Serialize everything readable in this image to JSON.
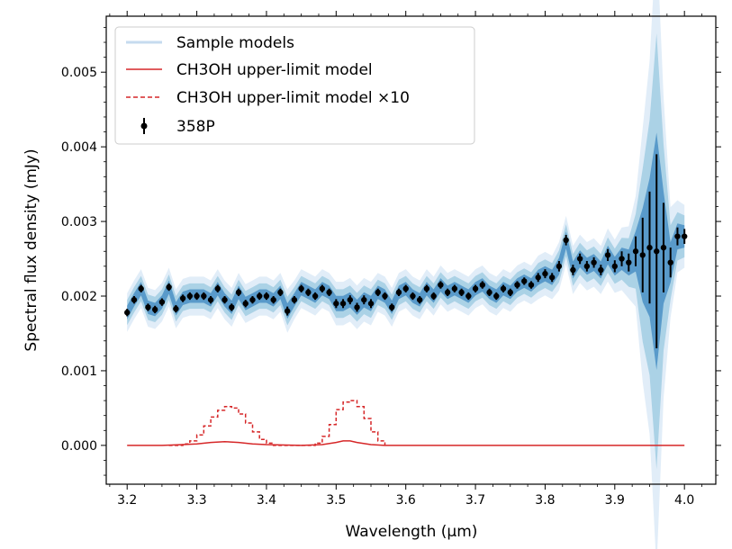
{
  "chart_data": {
    "type": "line",
    "xlabel": "Wavelength (μm)",
    "ylabel": "Spectral flux density (mJy)",
    "xlim": [
      3.17,
      4.045
    ],
    "ylim": [
      -0.00052,
      0.00575
    ],
    "x_ticks": [
      3.2,
      3.3,
      3.4,
      3.5,
      3.6,
      3.7,
      3.8,
      3.9,
      4.0
    ],
    "x_tick_labels": [
      "3.2",
      "3.3",
      "3.4",
      "3.5",
      "3.6",
      "3.7",
      "3.8",
      "3.9",
      "4.0"
    ],
    "y_ticks": [
      0.0,
      0.001,
      0.002,
      0.003,
      0.004,
      0.005
    ],
    "y_tick_labels": [
      "0.000",
      "0.001",
      "0.002",
      "0.003",
      "0.004",
      "0.005"
    ],
    "legend_position": "top-left",
    "legend": [
      {
        "label": "Sample models",
        "style": "band",
        "color": "#c6dbef"
      },
      {
        "label": "CH3OH upper-limit model",
        "style": "solid-line",
        "color": "#d62728"
      },
      {
        "label": "CH3OH upper-limit model ×10",
        "style": "dashed-line",
        "color": "#d62728"
      },
      {
        "label": "358P",
        "style": "errorbar-point",
        "color": "#000000"
      }
    ],
    "series": [
      {
        "name": "358P",
        "type": "errorbar",
        "color": "#000000",
        "x": [
          3.2,
          3.21,
          3.22,
          3.23,
          3.24,
          3.25,
          3.26,
          3.27,
          3.28,
          3.29,
          3.3,
          3.31,
          3.32,
          3.33,
          3.34,
          3.35,
          3.36,
          3.37,
          3.38,
          3.39,
          3.4,
          3.41,
          3.42,
          3.43,
          3.44,
          3.45,
          3.46,
          3.47,
          3.48,
          3.49,
          3.5,
          3.51,
          3.52,
          3.53,
          3.54,
          3.55,
          3.56,
          3.57,
          3.58,
          3.59,
          3.6,
          3.61,
          3.62,
          3.63,
          3.64,
          3.65,
          3.66,
          3.67,
          3.68,
          3.69,
          3.7,
          3.71,
          3.72,
          3.73,
          3.74,
          3.75,
          3.76,
          3.77,
          3.78,
          3.79,
          3.8,
          3.81,
          3.82,
          3.83,
          3.84,
          3.85,
          3.86,
          3.87,
          3.88,
          3.89,
          3.9,
          3.91,
          3.92,
          3.93,
          3.94,
          3.95,
          3.96,
          3.97,
          3.98,
          3.99,
          4.0
        ],
        "y": [
          0.00178,
          0.00195,
          0.0021,
          0.00185,
          0.00182,
          0.00192,
          0.00212,
          0.00183,
          0.00197,
          0.002,
          0.002,
          0.002,
          0.00195,
          0.0021,
          0.00195,
          0.00185,
          0.00205,
          0.0019,
          0.00195,
          0.002,
          0.002,
          0.00195,
          0.00205,
          0.0018,
          0.00195,
          0.0021,
          0.00205,
          0.002,
          0.0021,
          0.00205,
          0.0019,
          0.0019,
          0.00195,
          0.00185,
          0.00195,
          0.0019,
          0.00205,
          0.002,
          0.00185,
          0.00205,
          0.0021,
          0.002,
          0.00195,
          0.0021,
          0.002,
          0.00215,
          0.00205,
          0.0021,
          0.00205,
          0.002,
          0.0021,
          0.00215,
          0.00205,
          0.002,
          0.0021,
          0.00205,
          0.00215,
          0.0022,
          0.00215,
          0.00225,
          0.0023,
          0.00225,
          0.0024,
          0.00275,
          0.00235,
          0.0025,
          0.0024,
          0.00245,
          0.00235,
          0.00255,
          0.0024,
          0.0025,
          0.00245,
          0.0026,
          0.00255,
          0.00265,
          0.0026,
          0.00265,
          0.00245,
          0.0028,
          0.0028
        ],
        "err": [
          5e-05,
          5e-05,
          5e-05,
          5e-05,
          5e-05,
          5e-05,
          5e-05,
          5e-05,
          5e-05,
          5e-05,
          5e-05,
          5e-05,
          5e-05,
          5e-05,
          5e-05,
          5e-05,
          5e-05,
          5e-05,
          5e-05,
          5e-05,
          5e-05,
          5e-05,
          5e-05,
          6e-05,
          5e-05,
          5e-05,
          5e-05,
          5e-05,
          5e-05,
          5e-05,
          6e-05,
          6e-05,
          6e-05,
          6e-05,
          6e-05,
          6e-05,
          5e-05,
          5e-05,
          5e-05,
          5e-05,
          5e-05,
          5e-05,
          5e-05,
          5e-05,
          5e-05,
          5e-05,
          5e-05,
          5e-05,
          5e-05,
          5e-05,
          5e-05,
          5e-05,
          5e-05,
          5e-05,
          5e-05,
          5e-05,
          5e-05,
          5e-05,
          5e-05,
          6e-05,
          6e-05,
          6e-05,
          7e-05,
          7e-05,
          7e-05,
          7e-05,
          7e-05,
          7e-05,
          7e-05,
          8e-05,
          8e-05,
          0.0001,
          0.00012,
          0.0002,
          0.0005,
          0.00075,
          0.0013,
          0.0006,
          0.0002,
          0.00012,
          0.0001
        ]
      },
      {
        "name": "CH3OH upper-limit model",
        "type": "line",
        "color": "#d62728",
        "x": [
          3.2,
          3.25,
          3.28,
          3.3,
          3.32,
          3.34,
          3.36,
          3.38,
          3.4,
          3.45,
          3.48,
          3.5,
          3.51,
          3.52,
          3.53,
          3.55,
          3.57,
          3.65,
          3.8,
          4.0
        ],
        "y": [
          0.0,
          0.0,
          1e-05,
          2e-05,
          4e-05,
          5e-05,
          4e-05,
          2e-05,
          1e-05,
          0.0,
          1e-05,
          4e-05,
          6e-05,
          6e-05,
          4e-05,
          1e-05,
          0.0,
          0.0,
          0.0,
          0.0
        ]
      },
      {
        "name": "CH3OH upper-limit model ×10",
        "type": "step-dashed",
        "color": "#d62728",
        "x": [
          3.26,
          3.27,
          3.28,
          3.29,
          3.3,
          3.31,
          3.32,
          3.33,
          3.34,
          3.35,
          3.36,
          3.37,
          3.38,
          3.39,
          3.4,
          3.41,
          3.46,
          3.47,
          3.48,
          3.49,
          3.5,
          3.51,
          3.52,
          3.53,
          3.54,
          3.55,
          3.56,
          3.57
        ],
        "y": [
          0.0,
          0.0,
          2e-05,
          6e-05,
          0.00014,
          0.00026,
          0.00038,
          0.00047,
          0.00052,
          0.0005,
          0.00042,
          0.0003,
          0.00018,
          8e-05,
          3e-05,
          0.0,
          0.0,
          3e-05,
          0.00012,
          0.00028,
          0.00048,
          0.00058,
          0.0006,
          0.00052,
          0.00036,
          0.00018,
          6e-05,
          0.0
        ]
      }
    ]
  }
}
